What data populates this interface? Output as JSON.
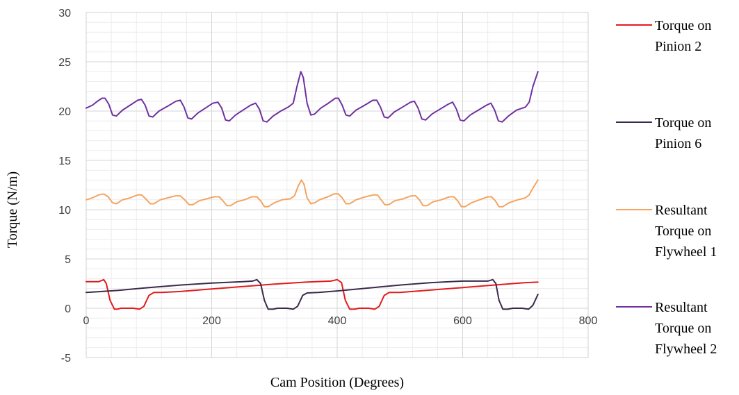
{
  "chart_data": {
    "type": "line",
    "title": "",
    "xlabel": "Cam Position (Degrees)",
    "ylabel": "Torque (N/m)",
    "xlim": [
      0,
      800
    ],
    "ylim": [
      -5,
      30
    ],
    "x_ticks": [
      0,
      200,
      400,
      600,
      800
    ],
    "y_ticks": [
      -5,
      0,
      5,
      10,
      15,
      20,
      25,
      30
    ],
    "grid": true,
    "legend_position": "right",
    "series": [
      {
        "name": "Torque on Pinion 2",
        "legend_lines": [
          "Torque on",
          "Pinion 2"
        ],
        "color": "#e41a1c",
        "points": [
          [
            0,
            2.7
          ],
          [
            10,
            2.7
          ],
          [
            20,
            2.7
          ],
          [
            28,
            2.9
          ],
          [
            32,
            2.5
          ],
          [
            38,
            0.8
          ],
          [
            45,
            -0.1
          ],
          [
            50,
            -0.1
          ],
          [
            55,
            0
          ],
          [
            65,
            0
          ],
          [
            75,
            0
          ],
          [
            85,
            -0.1
          ],
          [
            92,
            0.2
          ],
          [
            100,
            1.3
          ],
          [
            108,
            1.6
          ],
          [
            120,
            1.6
          ],
          [
            150,
            1.7
          ],
          [
            200,
            1.95
          ],
          [
            250,
            2.2
          ],
          [
            300,
            2.45
          ],
          [
            350,
            2.65
          ],
          [
            390,
            2.75
          ],
          [
            400,
            2.9
          ],
          [
            407,
            2.6
          ],
          [
            413,
            0.8
          ],
          [
            420,
            -0.1
          ],
          [
            428,
            -0.1
          ],
          [
            435,
            0
          ],
          [
            450,
            0
          ],
          [
            460,
            -0.1
          ],
          [
            467,
            0.2
          ],
          [
            475,
            1.3
          ],
          [
            483,
            1.6
          ],
          [
            500,
            1.6
          ],
          [
            550,
            1.85
          ],
          [
            600,
            2.1
          ],
          [
            650,
            2.35
          ],
          [
            700,
            2.6
          ],
          [
            720,
            2.65
          ]
        ]
      },
      {
        "name": "Torque on Pinion 6",
        "legend_lines": [
          "Torque on",
          "Pinion 6"
        ],
        "color": "#3b2a4a",
        "points": [
          [
            0,
            1.6
          ],
          [
            50,
            1.8
          ],
          [
            100,
            2.1
          ],
          [
            150,
            2.35
          ],
          [
            200,
            2.55
          ],
          [
            250,
            2.7
          ],
          [
            265,
            2.75
          ],
          [
            272,
            2.9
          ],
          [
            278,
            2.5
          ],
          [
            284,
            0.8
          ],
          [
            290,
            -0.1
          ],
          [
            298,
            -0.1
          ],
          [
            305,
            0
          ],
          [
            320,
            0
          ],
          [
            330,
            -0.1
          ],
          [
            337,
            0.2
          ],
          [
            345,
            1.3
          ],
          [
            352,
            1.55
          ],
          [
            370,
            1.6
          ],
          [
            400,
            1.75
          ],
          [
            450,
            2.05
          ],
          [
            500,
            2.35
          ],
          [
            550,
            2.6
          ],
          [
            600,
            2.75
          ],
          [
            640,
            2.75
          ],
          [
            648,
            2.9
          ],
          [
            653,
            2.5
          ],
          [
            658,
            0.8
          ],
          [
            664,
            -0.1
          ],
          [
            672,
            -0.1
          ],
          [
            680,
            0
          ],
          [
            695,
            0
          ],
          [
            705,
            -0.1
          ],
          [
            712,
            0.3
          ],
          [
            720,
            1.4
          ]
        ]
      },
      {
        "name": "Resultant Torque on Flywheel 1",
        "legend_lines": [
          "Resultant",
          "Torque on",
          "Flywheel 1"
        ],
        "color": "#f4a460",
        "points": [
          [
            0,
            11.0
          ],
          [
            10,
            11.2
          ],
          [
            20,
            11.5
          ],
          [
            28,
            11.6
          ],
          [
            35,
            11.3
          ],
          [
            42,
            10.7
          ],
          [
            48,
            10.6
          ],
          [
            58,
            11.0
          ],
          [
            70,
            11.2
          ],
          [
            82,
            11.5
          ],
          [
            88,
            11.5
          ],
          [
            95,
            11.1
          ],
          [
            102,
            10.6
          ],
          [
            108,
            10.6
          ],
          [
            118,
            11.0
          ],
          [
            130,
            11.2
          ],
          [
            142,
            11.4
          ],
          [
            150,
            11.4
          ],
          [
            157,
            11.0
          ],
          [
            164,
            10.5
          ],
          [
            170,
            10.5
          ],
          [
            180,
            10.9
          ],
          [
            192,
            11.1
          ],
          [
            204,
            11.3
          ],
          [
            212,
            11.3
          ],
          [
            218,
            10.9
          ],
          [
            224,
            10.4
          ],
          [
            230,
            10.4
          ],
          [
            240,
            10.8
          ],
          [
            252,
            11.0
          ],
          [
            264,
            11.3
          ],
          [
            272,
            11.3
          ],
          [
            278,
            10.9
          ],
          [
            284,
            10.3
          ],
          [
            290,
            10.3
          ],
          [
            300,
            10.7
          ],
          [
            312,
            11.0
          ],
          [
            325,
            11.1
          ],
          [
            332,
            11.4
          ],
          [
            338,
            12.4
          ],
          [
            343,
            13.0
          ],
          [
            347,
            12.6
          ],
          [
            352,
            11.2
          ],
          [
            358,
            10.6
          ],
          [
            364,
            10.7
          ],
          [
            372,
            11.0
          ],
          [
            385,
            11.3
          ],
          [
            395,
            11.6
          ],
          [
            402,
            11.6
          ],
          [
            408,
            11.2
          ],
          [
            414,
            10.6
          ],
          [
            420,
            10.6
          ],
          [
            430,
            11.0
          ],
          [
            445,
            11.3
          ],
          [
            458,
            11.5
          ],
          [
            464,
            11.5
          ],
          [
            470,
            11.0
          ],
          [
            476,
            10.5
          ],
          [
            482,
            10.5
          ],
          [
            492,
            10.9
          ],
          [
            505,
            11.1
          ],
          [
            518,
            11.4
          ],
          [
            525,
            11.4
          ],
          [
            531,
            11.0
          ],
          [
            537,
            10.4
          ],
          [
            543,
            10.4
          ],
          [
            553,
            10.8
          ],
          [
            566,
            11.0
          ],
          [
            579,
            11.3
          ],
          [
            586,
            11.3
          ],
          [
            592,
            10.9
          ],
          [
            598,
            10.3
          ],
          [
            604,
            10.3
          ],
          [
            614,
            10.7
          ],
          [
            627,
            11.0
          ],
          [
            640,
            11.3
          ],
          [
            646,
            11.3
          ],
          [
            652,
            10.9
          ],
          [
            658,
            10.3
          ],
          [
            664,
            10.3
          ],
          [
            674,
            10.7
          ],
          [
            688,
            11.0
          ],
          [
            700,
            11.2
          ],
          [
            706,
            11.5
          ],
          [
            712,
            12.2
          ],
          [
            720,
            13.0
          ]
        ]
      },
      {
        "name": "Resultant Torque on Flywheel 2",
        "legend_lines": [
          "Resultant",
          "Torque on",
          "Flywheel 2"
        ],
        "color": "#7030a0",
        "points": [
          [
            0,
            20.3
          ],
          [
            10,
            20.6
          ],
          [
            18,
            21.0
          ],
          [
            25,
            21.3
          ],
          [
            30,
            21.3
          ],
          [
            36,
            20.7
          ],
          [
            42,
            19.6
          ],
          [
            48,
            19.5
          ],
          [
            58,
            20.1
          ],
          [
            70,
            20.6
          ],
          [
            82,
            21.1
          ],
          [
            88,
            21.2
          ],
          [
            94,
            20.6
          ],
          [
            100,
            19.5
          ],
          [
            106,
            19.4
          ],
          [
            116,
            20.0
          ],
          [
            130,
            20.5
          ],
          [
            143,
            21.0
          ],
          [
            150,
            21.1
          ],
          [
            156,
            20.4
          ],
          [
            162,
            19.3
          ],
          [
            168,
            19.2
          ],
          [
            178,
            19.8
          ],
          [
            190,
            20.3
          ],
          [
            202,
            20.8
          ],
          [
            210,
            20.9
          ],
          [
            216,
            20.3
          ],
          [
            222,
            19.1
          ],
          [
            228,
            19.0
          ],
          [
            238,
            19.6
          ],
          [
            250,
            20.1
          ],
          [
            262,
            20.6
          ],
          [
            270,
            20.8
          ],
          [
            276,
            20.2
          ],
          [
            282,
            19.0
          ],
          [
            288,
            18.9
          ],
          [
            298,
            19.5
          ],
          [
            310,
            20.0
          ],
          [
            322,
            20.4
          ],
          [
            330,
            20.8
          ],
          [
            336,
            22.5
          ],
          [
            342,
            24.0
          ],
          [
            346,
            23.4
          ],
          [
            352,
            20.8
          ],
          [
            358,
            19.6
          ],
          [
            364,
            19.7
          ],
          [
            374,
            20.3
          ],
          [
            386,
            20.8
          ],
          [
            397,
            21.3
          ],
          [
            402,
            21.3
          ],
          [
            408,
            20.6
          ],
          [
            414,
            19.6
          ],
          [
            420,
            19.5
          ],
          [
            430,
            20.1
          ],
          [
            444,
            20.6
          ],
          [
            457,
            21.1
          ],
          [
            463,
            21.1
          ],
          [
            469,
            20.4
          ],
          [
            475,
            19.4
          ],
          [
            481,
            19.3
          ],
          [
            491,
            19.9
          ],
          [
            504,
            20.4
          ],
          [
            517,
            20.9
          ],
          [
            523,
            21.0
          ],
          [
            529,
            20.3
          ],
          [
            535,
            19.2
          ],
          [
            541,
            19.1
          ],
          [
            551,
            19.7
          ],
          [
            564,
            20.2
          ],
          [
            577,
            20.7
          ],
          [
            584,
            20.9
          ],
          [
            590,
            20.2
          ],
          [
            596,
            19.1
          ],
          [
            602,
            19.0
          ],
          [
            612,
            19.6
          ],
          [
            625,
            20.1
          ],
          [
            638,
            20.6
          ],
          [
            645,
            20.8
          ],
          [
            651,
            20.1
          ],
          [
            657,
            19.0
          ],
          [
            663,
            18.9
          ],
          [
            673,
            19.5
          ],
          [
            686,
            20.1
          ],
          [
            700,
            20.4
          ],
          [
            706,
            20.9
          ],
          [
            712,
            22.5
          ],
          [
            720,
            24.0
          ]
        ]
      }
    ]
  }
}
